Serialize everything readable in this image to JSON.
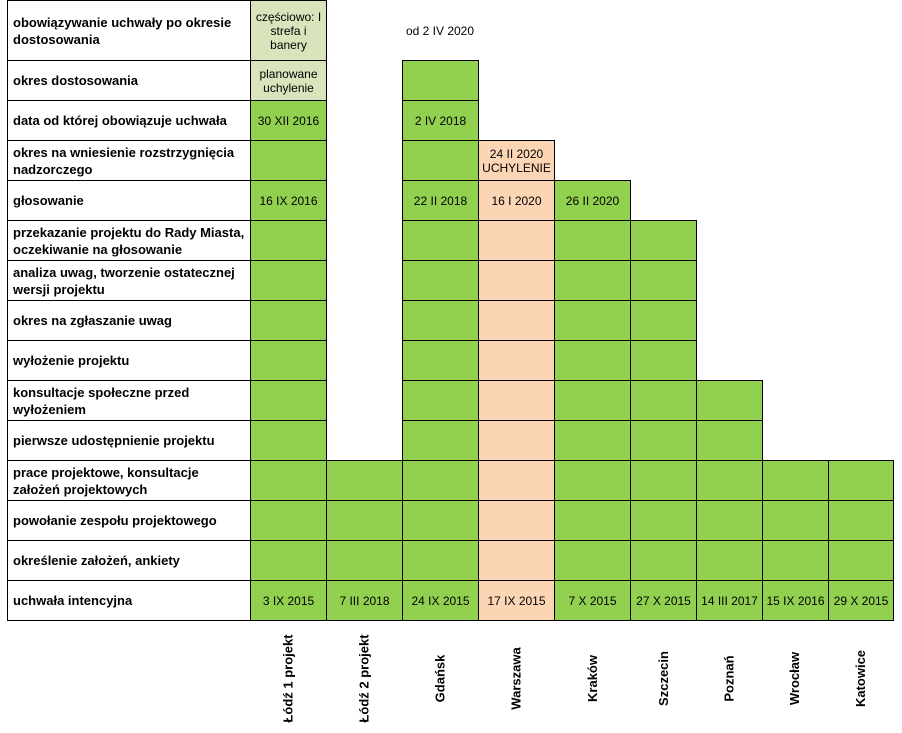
{
  "rows": [
    "obowiązywanie uchwały po okresie dostosowania",
    "okres dostosowania",
    "data od której obowiązuje uchwała",
    "okres na wniesienie rozstrzygnięcia nadzorczego",
    "głosowanie",
    "przekazanie projektu do Rady Miasta, oczekiwanie na głosowanie",
    "analiza uwag, tworzenie ostatecznej wersji projektu",
    "okres na zgłaszanie uwag",
    "wyłożenie projektu",
    "konsultacje społeczne przed wyłożeniem",
    "pierwsze udostępnienie projektu",
    "prace projektowe, konsultacje założeń projektowych",
    "powołanie zespołu projektowego",
    "określenie założeń, ankiety",
    "uchwała intencyjna"
  ],
  "cities": [
    {
      "name": "Łódź 1 projekt",
      "top_stage": 0,
      "cells": [
        {
          "stage": 0,
          "text": "częściowo: I strefa i banery",
          "color": "light"
        },
        {
          "stage": 1,
          "text": "planowane uchylenie",
          "color": "light"
        },
        {
          "stage": 2,
          "text": "30 XII 2016"
        },
        {
          "stage": 4,
          "text": "16 IX 2016"
        },
        {
          "stage": 14,
          "text": "3 IX 2015"
        }
      ]
    },
    {
      "name": "Łódź 2 projekt",
      "top_stage": 11,
      "cells": [
        {
          "stage": 14,
          "text": "7 III 2018"
        }
      ]
    },
    {
      "name": "Gdańsk",
      "top_stage": 1,
      "note": "od 2 IV 2020",
      "cells": [
        {
          "stage": 2,
          "text": "2 IV 2018"
        },
        {
          "stage": 4,
          "text": "22 II 2018"
        },
        {
          "stage": 14,
          "text": "24 IX  2015"
        }
      ]
    },
    {
      "name": "Warszawa",
      "top_stage": 3,
      "fill": "peach",
      "cells": [
        {
          "stage": 3,
          "text": "24 II 2020 UCHYLENIE"
        },
        {
          "stage": 4,
          "text": "16 I 2020"
        },
        {
          "stage": 14,
          "text": "17 IX 2015"
        }
      ]
    },
    {
      "name": "Kraków",
      "top_stage": 4,
      "cells": [
        {
          "stage": 4,
          "text": "26 II 2020"
        },
        {
          "stage": 14,
          "text": "7 X 2015"
        }
      ]
    },
    {
      "name": "Szczecin",
      "top_stage": 5,
      "cells": [
        {
          "stage": 14,
          "text": "27 X 2015"
        }
      ]
    },
    {
      "name": "Poznań",
      "top_stage": 9,
      "cells": [
        {
          "stage": 14,
          "text": "14 III 2017"
        }
      ]
    },
    {
      "name": "Wrocław",
      "top_stage": 11,
      "cells": [
        {
          "stage": 14,
          "text": "15 IX 2016"
        }
      ]
    },
    {
      "name": "Katowice",
      "top_stage": 11,
      "cells": [
        {
          "stage": 14,
          "text": "29 X 2015"
        }
      ]
    }
  ],
  "colors": {
    "green": "#92d050",
    "light": "#d8e4bc",
    "peach": "#fcd5b4",
    "border": "#000000"
  }
}
